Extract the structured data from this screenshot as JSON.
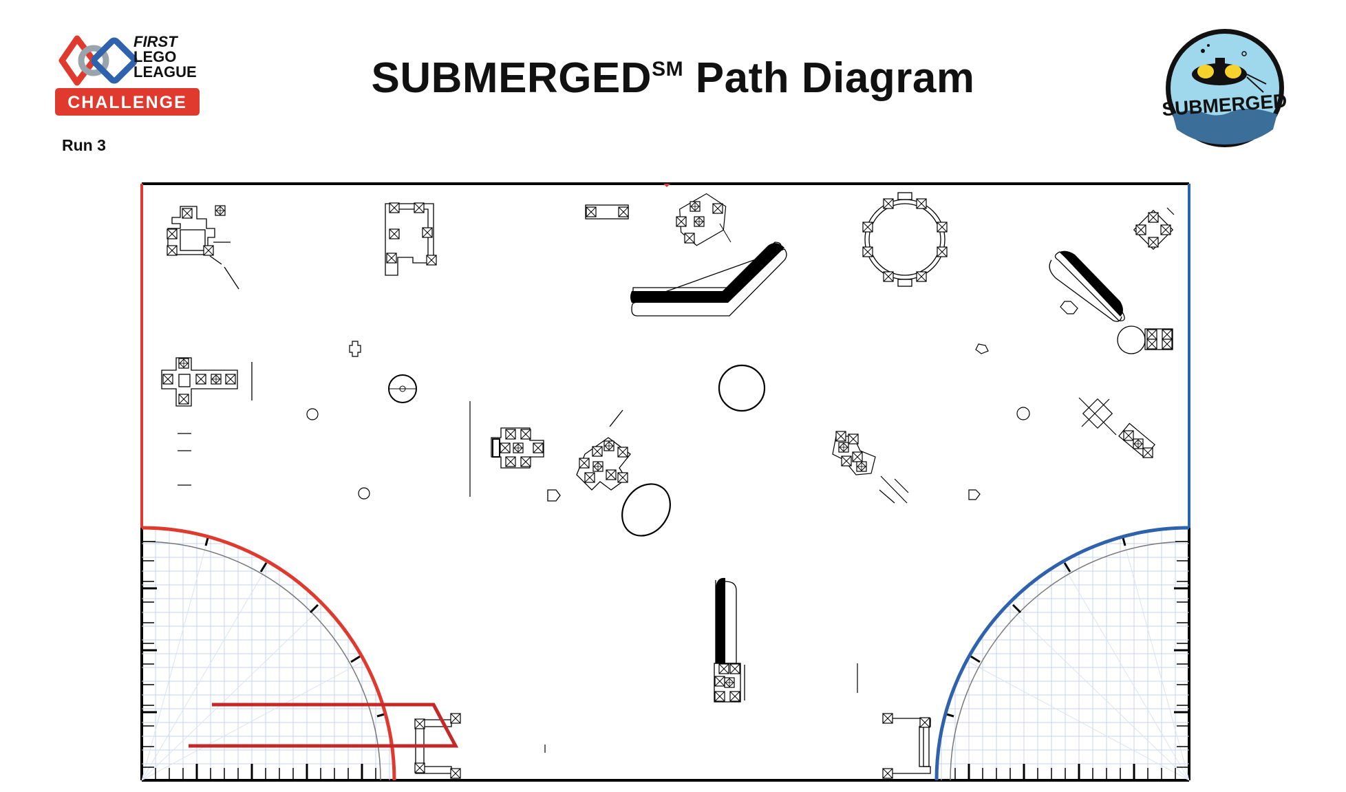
{
  "header": {
    "title_main": "SUBMERGED",
    "title_mark": "SM",
    "title_rest": " Path Diagram",
    "run_label": "Run 3"
  },
  "logos": {
    "left": {
      "line1": "FIRST",
      "line2": "LEGO",
      "line3": "LEAGUE",
      "badge": "CHALLENGE"
    },
    "right": {
      "text": "SUBMERGED"
    }
  },
  "colors": {
    "red_team": "#e03a2f",
    "blue_team": "#2f62ad",
    "path": "#c62828",
    "badge_red": "#e03a2f",
    "logo_bg": "#9fd8ec",
    "logo_yellow": "#f5d32c"
  },
  "icons": [
    "first-lego-league-logo",
    "submerged-logo"
  ]
}
